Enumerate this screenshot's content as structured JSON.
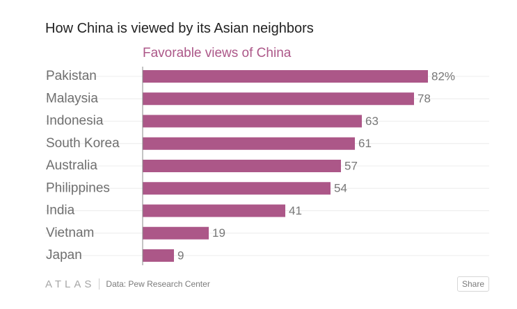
{
  "chart_data": {
    "type": "bar",
    "orientation": "horizontal",
    "title": "How China is viewed by its Asian neighbors",
    "series_name": "Favorable views of China",
    "categories": [
      "Pakistan",
      "Malaysia",
      "Indonesia",
      "South Korea",
      "Australia",
      "Philippines",
      "India",
      "Vietnam",
      "Japan"
    ],
    "values": [
      82,
      78,
      63,
      61,
      57,
      54,
      41,
      19,
      9
    ],
    "value_labels": [
      "82%",
      "78",
      "63",
      "61",
      "57",
      "54",
      "41",
      "19",
      "9"
    ],
    "xlim": [
      0,
      100
    ],
    "xlabel": "",
    "ylabel": "",
    "grid": true,
    "bar_color": "#ac5788",
    "subtitle_color": "#ac5788"
  },
  "footer": {
    "brand": "ATLAS",
    "source": "Data: Pew Research Center",
    "share_label": "Share"
  }
}
